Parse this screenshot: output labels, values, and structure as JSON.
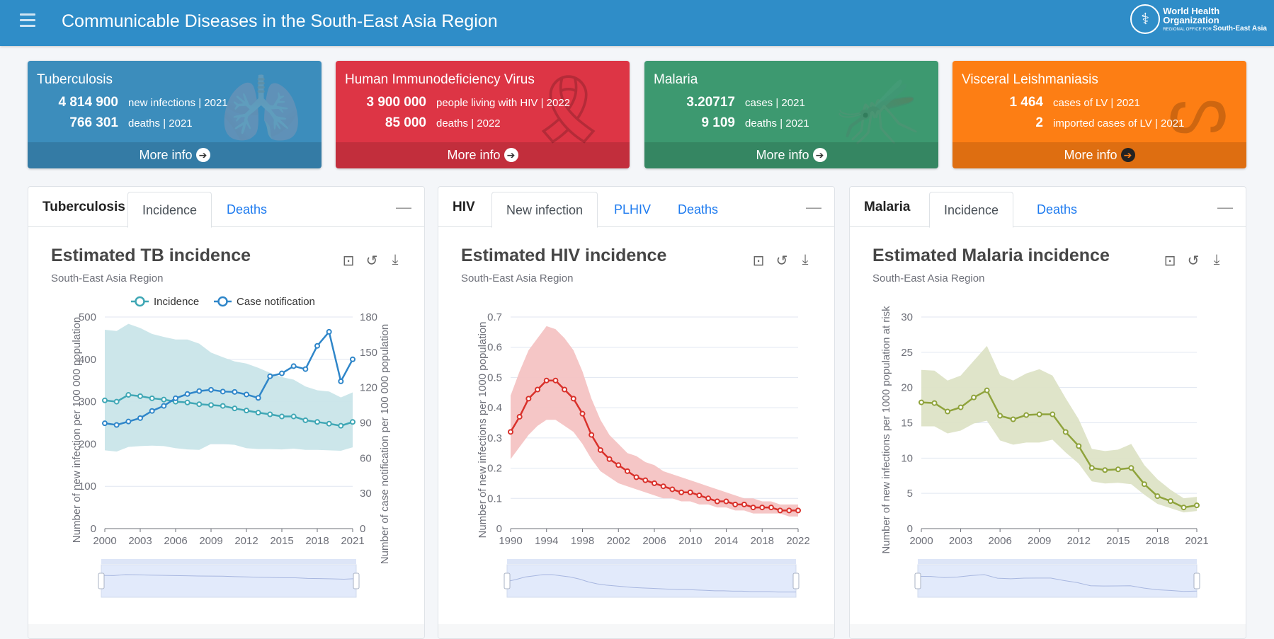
{
  "header": {
    "title": "Communicable Diseases in the South-East Asia Region",
    "logo_text": "World Health Organization",
    "logo_sub": "REGIONAL OFFICE FOR",
    "logo_region": "South-East Asia",
    "menu_icon": "hamburger-icon"
  },
  "cards": [
    {
      "title": "Tuberculosis",
      "color": "#3c8dbc",
      "icon": "lungs-icon",
      "rows": [
        {
          "value": "4 814 900",
          "label": "new infections | 2021"
        },
        {
          "value": "766 301",
          "label": "deaths | 2021"
        }
      ],
      "more": "More info"
    },
    {
      "title": "Human Immunodeficiency Virus",
      "color": "#dd3545",
      "icon": "ribbon-icon",
      "rows": [
        {
          "value": "3 900 000",
          "label": "people living with HIV | 2022"
        },
        {
          "value": "85 000",
          "label": "deaths | 2022"
        }
      ],
      "more": "More info"
    },
    {
      "title": "Malaria",
      "color": "#3d9970",
      "icon": "mosquito-icon",
      "rows": [
        {
          "value": "3.20717",
          "label": "cases | 2021"
        },
        {
          "value": "9 109",
          "label": "deaths | 2021"
        }
      ],
      "more": "More info"
    },
    {
      "title": "Visceral Leishmaniasis",
      "color": "#fd7e14",
      "icon": "sandfly-icon",
      "rows": [
        {
          "value": "1 464",
          "label": "cases of LV | 2021"
        },
        {
          "value": "2",
          "label": "imported cases of LV | 2021"
        }
      ],
      "more": "More info"
    }
  ],
  "panels": [
    {
      "title": "Tuberculosis",
      "tabs": [
        "Incidence",
        "Deaths"
      ],
      "active": 0
    },
    {
      "title": "HIV",
      "tabs": [
        "New infection",
        "PLHIV",
        "Deaths"
      ],
      "active": 0
    },
    {
      "title": "Malaria",
      "tabs": [
        "Incidence",
        "Deaths"
      ],
      "active": 0
    }
  ],
  "chart_data": [
    {
      "type": "line",
      "title": "Estimated TB incidence",
      "subtitle": "South-East Asia Region",
      "xlabel": "",
      "ylabel": "Number of new infection per 100 000 population",
      "y2label": "Number of case notification per 100 000 population",
      "ylim": [
        0,
        500
      ],
      "y2lim": [
        0,
        180
      ],
      "yticks": [
        0,
        100,
        200,
        300,
        400,
        500
      ],
      "y2ticks": [
        0,
        30,
        60,
        90,
        120,
        150,
        180
      ],
      "xticks": [
        2000,
        2003,
        2006,
        2009,
        2012,
        2015,
        2018,
        2021
      ],
      "grid": true,
      "legend": "top",
      "color": "#3fa7b5",
      "color2": "#2f86c9",
      "band_color": "#c9e5e9",
      "x": [
        2000,
        2001,
        2002,
        2003,
        2004,
        2005,
        2006,
        2007,
        2008,
        2009,
        2010,
        2011,
        2012,
        2013,
        2014,
        2015,
        2016,
        2017,
        2018,
        2019,
        2020,
        2021
      ],
      "series": [
        {
          "name": "Incidence",
          "axis": "left",
          "values": [
            303,
            300,
            316,
            313,
            308,
            305,
            300,
            298,
            294,
            292,
            290,
            284,
            279,
            274,
            270,
            265,
            265,
            256,
            252,
            248,
            243,
            252
          ],
          "upper": [
            470,
            467,
            484,
            474,
            460,
            453,
            447,
            447,
            437,
            416,
            405,
            395,
            390,
            380,
            368,
            358,
            352,
            336,
            327,
            324,
            310,
            322
          ],
          "lower": [
            185,
            182,
            193,
            195,
            196,
            195,
            190,
            187,
            186,
            200,
            200,
            198,
            190,
            188,
            188,
            187,
            189,
            186,
            186,
            185,
            184,
            192
          ]
        },
        {
          "name": "Case notification",
          "axis": "right",
          "values": [
            89.6,
            88.2,
            91.1,
            94,
            100.1,
            104.4,
            110.9,
            114.5,
            117,
            118.1,
            116.6,
            116.3,
            114.1,
            111.2,
            129.6,
            132.1,
            138.2,
            135.7,
            155.5,
            167.4,
            125.3,
            144
          ]
        }
      ]
    },
    {
      "type": "line",
      "title": "Estimated HIV incidence",
      "subtitle": "South-East Asia Region",
      "xlabel": "",
      "ylabel": "Number of new infections per 1000 population",
      "ylim": [
        0,
        0.7
      ],
      "yticks": [
        0,
        0.1,
        0.2,
        0.3,
        0.4,
        0.5,
        0.6,
        0.7
      ],
      "xticks": [
        1990,
        1994,
        1998,
        2002,
        2006,
        2010,
        2014,
        2018,
        2022
      ],
      "grid": true,
      "color": "#d9312b",
      "band_color": "#f4c3c3",
      "x": [
        1990,
        1991,
        1992,
        1993,
        1994,
        1995,
        1996,
        1997,
        1998,
        1999,
        2000,
        2001,
        2002,
        2003,
        2004,
        2005,
        2006,
        2007,
        2008,
        2009,
        2010,
        2011,
        2012,
        2013,
        2014,
        2015,
        2016,
        2017,
        2018,
        2019,
        2020,
        2021,
        2022
      ],
      "series": [
        {
          "values": [
            0.32,
            0.37,
            0.43,
            0.46,
            0.49,
            0.49,
            0.46,
            0.43,
            0.38,
            0.31,
            0.26,
            0.23,
            0.21,
            0.19,
            0.17,
            0.16,
            0.15,
            0.14,
            0.13,
            0.12,
            0.12,
            0.11,
            0.1,
            0.09,
            0.09,
            0.08,
            0.08,
            0.07,
            0.07,
            0.07,
            0.06,
            0.06,
            0.06
          ],
          "upper": [
            0.44,
            0.52,
            0.59,
            0.63,
            0.67,
            0.66,
            0.63,
            0.59,
            0.52,
            0.43,
            0.36,
            0.31,
            0.28,
            0.25,
            0.24,
            0.22,
            0.21,
            0.19,
            0.18,
            0.17,
            0.16,
            0.15,
            0.14,
            0.13,
            0.12,
            0.11,
            0.1,
            0.1,
            0.09,
            0.09,
            0.08,
            0.08,
            0.08
          ],
          "lower": [
            0.23,
            0.27,
            0.31,
            0.34,
            0.36,
            0.36,
            0.34,
            0.32,
            0.28,
            0.23,
            0.19,
            0.17,
            0.15,
            0.14,
            0.13,
            0.12,
            0.11,
            0.1,
            0.1,
            0.09,
            0.09,
            0.08,
            0.08,
            0.07,
            0.07,
            0.06,
            0.06,
            0.05,
            0.05,
            0.05,
            0.05,
            0.04,
            0.04
          ]
        }
      ]
    },
    {
      "type": "line",
      "title": "Estimated Malaria incidence",
      "subtitle": "South-East Asia Region",
      "xlabel": "",
      "ylabel": "Number of new infections per 1000 population at risk",
      "ylim": [
        0,
        30
      ],
      "yticks": [
        0,
        5,
        10,
        15,
        20,
        25,
        30
      ],
      "xticks": [
        2000,
        2003,
        2006,
        2009,
        2012,
        2015,
        2018,
        2021
      ],
      "grid": true,
      "color": "#8fa33c",
      "band_color": "#dde3c6",
      "x": [
        2000,
        2001,
        2002,
        2003,
        2004,
        2005,
        2006,
        2007,
        2008,
        2009,
        2010,
        2011,
        2012,
        2013,
        2014,
        2015,
        2016,
        2017,
        2018,
        2019,
        2020,
        2021
      ],
      "series": [
        {
          "values": [
            17.9,
            17.8,
            16.6,
            17.2,
            18.6,
            19.6,
            16.0,
            15.5,
            16.1,
            16.2,
            16.2,
            13.7,
            11.7,
            8.6,
            8.3,
            8.4,
            8.6,
            6.3,
            4.6,
            3.9,
            3.0,
            3.3
          ],
          "upper": [
            22.5,
            22.4,
            21.0,
            21.7,
            23.8,
            25.9,
            21.8,
            21.0,
            22.0,
            22.6,
            21.7,
            18.5,
            15.5,
            11.3,
            11.0,
            11.2,
            12.0,
            9.0,
            7.0,
            5.5,
            4.3,
            4.5
          ],
          "lower": [
            14.5,
            14.5,
            13.5,
            13.9,
            14.9,
            15.3,
            12.5,
            11.9,
            12.2,
            12.2,
            12.6,
            10.8,
            9.2,
            6.7,
            6.4,
            6.5,
            6.3,
            4.8,
            3.5,
            2.9,
            2.3,
            2.5
          ]
        }
      ]
    }
  ]
}
